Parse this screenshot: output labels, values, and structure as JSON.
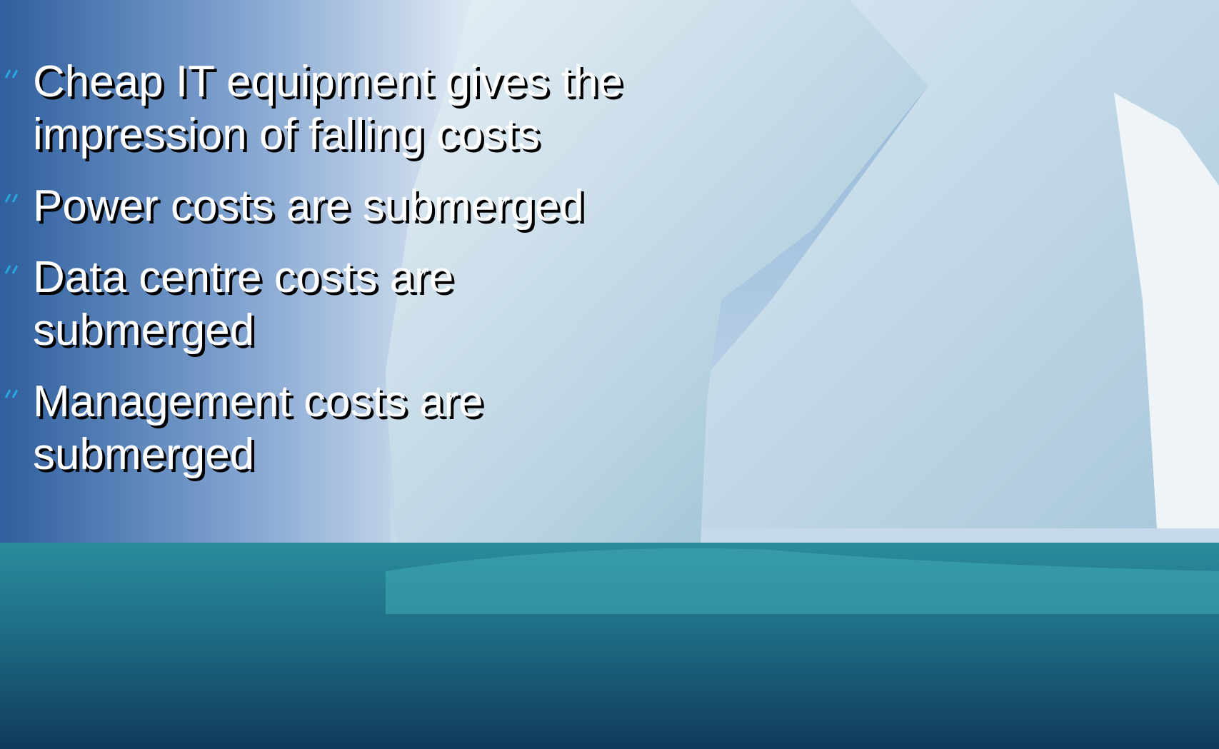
{
  "slide": {
    "bullets": [
      "Cheap IT equipment gives the impression of falling costs",
      "Power costs are submerged",
      "Data centre costs are submerged",
      "Management costs are submerged"
    ]
  }
}
